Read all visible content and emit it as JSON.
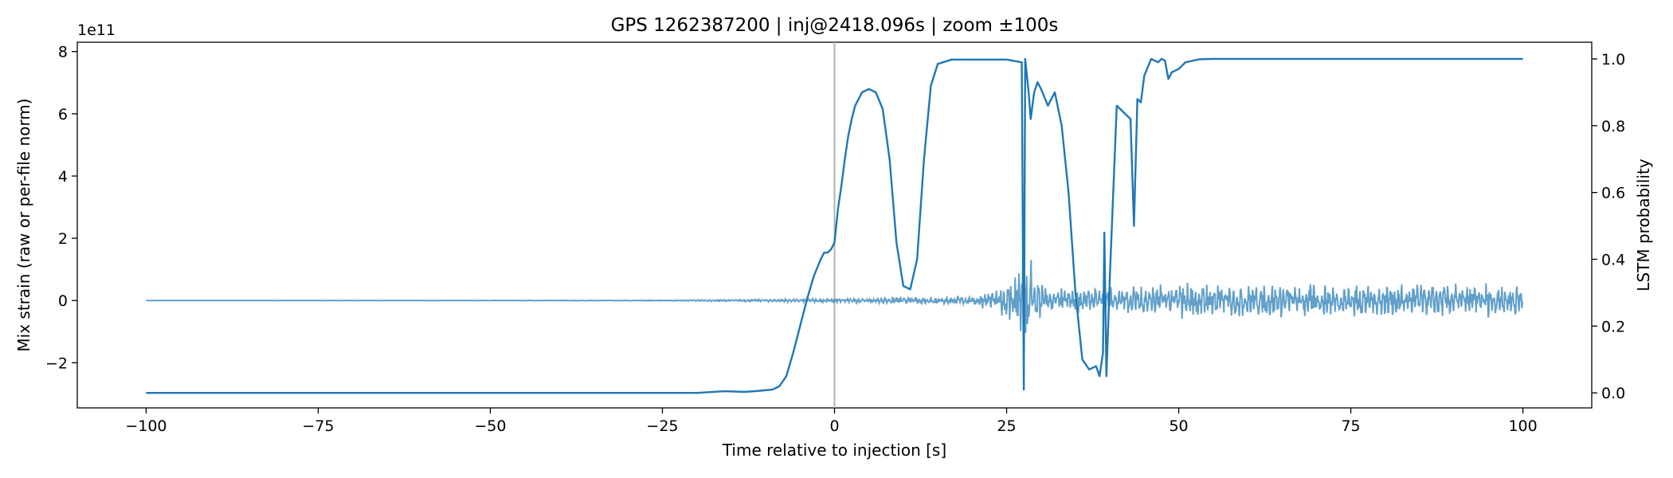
{
  "chart_data": {
    "type": "line",
    "title": "GPS 1262387200 | inj@2418.096s | zoom ±100s",
    "xlabel": "Time relative to injection [s]",
    "ylabel_left": "Mix strain (raw or per-file norm)",
    "ylabel_right": "LSTM probability",
    "left_axis_offset_label": "1e11",
    "xlim": [
      -110,
      110
    ],
    "ylim_left": [
      -3.45,
      8.3
    ],
    "ylim_right": [
      -0.045,
      1.05
    ],
    "x_ticks": [
      -100,
      -75,
      -50,
      -25,
      0,
      25,
      50,
      75,
      100
    ],
    "x_tick_labels": [
      "−100",
      "−75",
      "−50",
      "−25",
      "0",
      "25",
      "50",
      "75",
      "100"
    ],
    "left_ticks": [
      -2,
      0,
      2,
      4,
      6,
      8
    ],
    "left_tick_labels": [
      "−2",
      "0",
      "2",
      "4",
      "6",
      "8"
    ],
    "right_ticks": [
      0.0,
      0.2,
      0.4,
      0.6,
      0.8,
      1.0
    ],
    "right_tick_labels": [
      "0.0",
      "0.2",
      "0.4",
      "0.6",
      "0.8",
      "1.0"
    ],
    "injection_marker_x": 0,
    "grid": false,
    "legend": "none",
    "colors": {
      "line": "#1f77b4",
      "marker": "#b3b3b3"
    },
    "series": [
      {
        "axis": "left",
        "x": [
          -100,
          -60,
          -20,
          -10,
          -5,
          -2,
          0,
          5,
          10,
          15,
          20,
          22,
          24,
          25,
          26,
          27,
          27.5,
          28,
          28.5,
          29,
          30,
          31,
          32,
          34,
          36,
          38,
          39.5,
          41,
          43,
          46,
          50,
          55,
          60,
          70,
          80,
          90,
          100
        ],
        "y": [
          0,
          0,
          0.001,
          0.002,
          0.006,
          0.015,
          0.02,
          0.03,
          0.03,
          0.03,
          0.04,
          0.1,
          0.25,
          0.4,
          -0.6,
          -0.9,
          1.3,
          -1.4,
          1.0,
          -0.5,
          0.3,
          -0.15,
          0.25,
          -0.3,
          0.35,
          0.28,
          0.65,
          -0.2,
          0.6,
          -0.5,
          0.55,
          -0.4,
          0.6,
          -0.45,
          0.5,
          -0.3,
          0.4
        ],
        "noise_envelope": [
          [
            -100,
            0.0
          ],
          [
            -25,
            0.01
          ],
          [
            -5,
            0.04
          ],
          [
            0,
            0.05
          ],
          [
            10,
            0.08
          ],
          [
            20,
            0.12
          ],
          [
            24,
            0.3
          ],
          [
            26,
            0.8
          ],
          [
            27.5,
            1.2
          ],
          [
            29,
            0.7
          ],
          [
            31,
            0.3
          ],
          [
            35,
            0.3
          ],
          [
            38,
            0.35
          ],
          [
            42,
            0.3
          ],
          [
            44,
            0.45
          ],
          [
            60,
            0.45
          ],
          [
            100,
            0.45
          ]
        ]
      },
      {
        "axis": "right",
        "x": [
          -100,
          -50,
          -20,
          -16,
          -13,
          -11,
          -9,
          -8,
          -7,
          -6,
          -5,
          -4,
          -3,
          -2,
          -1.5,
          -1,
          -0.5,
          0,
          0.5,
          1,
          1.5,
          2,
          2.5,
          3,
          3.5,
          4,
          5,
          6,
          7,
          8,
          9,
          10,
          11,
          12,
          13,
          14,
          15,
          17,
          25,
          27.2,
          27.5,
          27.7,
          27.9,
          28.2,
          28.5,
          29,
          29.5,
          30,
          31,
          32,
          33,
          34,
          35,
          36,
          37,
          38,
          38.5,
          39,
          39.2,
          39.5,
          40,
          41,
          42,
          43,
          43.5,
          44,
          44.5,
          45,
          46,
          47,
          47.5,
          48,
          48.5,
          49,
          50,
          51,
          53,
          55,
          60,
          100
        ],
        "y": [
          0.0,
          0.0,
          0.0,
          0.005,
          0.003,
          0.006,
          0.01,
          0.02,
          0.05,
          0.12,
          0.2,
          0.28,
          0.35,
          0.4,
          0.42,
          0.42,
          0.43,
          0.45,
          0.55,
          0.62,
          0.7,
          0.77,
          0.82,
          0.86,
          0.88,
          0.9,
          0.91,
          0.9,
          0.85,
          0.7,
          0.45,
          0.32,
          0.31,
          0.4,
          0.7,
          0.92,
          0.985,
          0.998,
          0.998,
          0.99,
          0.01,
          1.0,
          0.96,
          0.9,
          0.82,
          0.9,
          0.93,
          0.91,
          0.86,
          0.9,
          0.8,
          0.6,
          0.3,
          0.1,
          0.07,
          0.08,
          0.05,
          0.12,
          0.48,
          0.05,
          0.35,
          0.86,
          0.84,
          0.82,
          0.5,
          0.88,
          0.87,
          0.95,
          1.0,
          0.99,
          1.0,
          0.995,
          0.94,
          0.96,
          0.97,
          0.99,
          0.999,
          1.0,
          1.0,
          1.0
        ]
      }
    ]
  }
}
